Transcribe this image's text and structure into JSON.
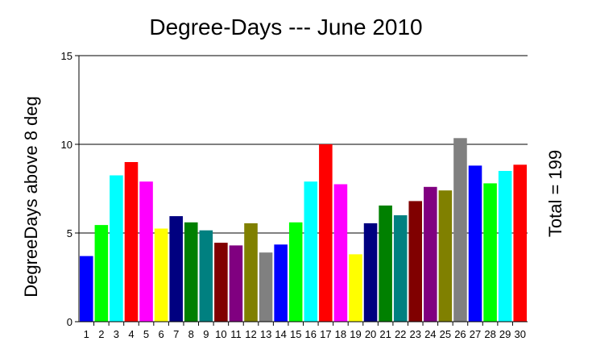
{
  "chart_data": {
    "type": "bar",
    "title": "Degree-Days --- June 2010",
    "xlabel": "",
    "ylabel": "DegreeDays above 8 deg",
    "annotation": "Total = 199",
    "ylim": [
      0,
      15
    ],
    "yticks": [
      "0",
      "5",
      "10",
      "15"
    ],
    "grid": true,
    "categories": [
      "1",
      "2",
      "3",
      "4",
      "5",
      "6",
      "7",
      "8",
      "9",
      "10",
      "11",
      "12",
      "13",
      "14",
      "15",
      "16",
      "17",
      "18",
      "19",
      "20",
      "21",
      "22",
      "23",
      "24",
      "25",
      "26",
      "27",
      "28",
      "29",
      "30"
    ],
    "values": [
      3.7,
      5.45,
      8.25,
      9.0,
      7.9,
      5.25,
      5.95,
      5.6,
      5.15,
      4.45,
      4.3,
      5.55,
      3.9,
      4.35,
      5.6,
      7.9,
      10.0,
      7.75,
      3.8,
      5.55,
      6.55,
      6.0,
      6.8,
      7.6,
      7.4,
      10.35,
      8.8,
      7.8,
      8.5,
      8.85
    ],
    "colors": [
      "#0000ff",
      "#00ff00",
      "#00ffff",
      "#ff0000",
      "#ff00ff",
      "#ffff00",
      "#000080",
      "#008000",
      "#008080",
      "#800000",
      "#800080",
      "#808000",
      "#808080",
      "#0000ff",
      "#00ff00",
      "#00ffff",
      "#ff0000",
      "#ff00ff",
      "#ffff00",
      "#000080",
      "#008000",
      "#008080",
      "#800000",
      "#800080",
      "#808000",
      "#808080",
      "#0000ff",
      "#00ff00",
      "#00ffff",
      "#ff0000"
    ]
  }
}
